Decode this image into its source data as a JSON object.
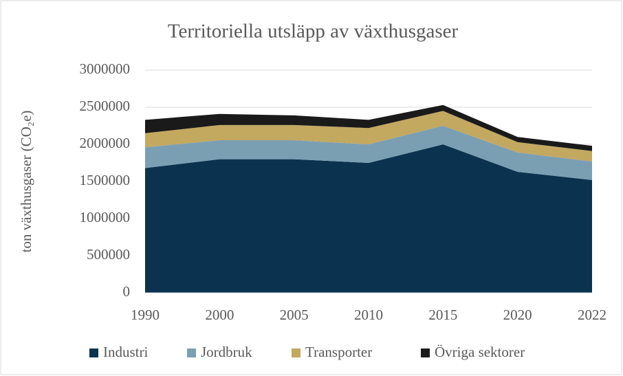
{
  "chart_data": {
    "type": "stacked_area",
    "title": "Territoriella utsläpp av växthusgaser",
    "y_label": "ton växthusgaser (CO₂e)",
    "categories": [
      "1990",
      "2000",
      "2005",
      "2010",
      "2015",
      "2020",
      "2022"
    ],
    "series": [
      {
        "name": "Industri",
        "color": "#0b3350",
        "values": [
          1680000,
          1800000,
          1800000,
          1750000,
          2000000,
          1630000,
          1520000
        ]
      },
      {
        "name": "Jordbruk",
        "color": "#7a9fb3",
        "values": [
          280000,
          255000,
          255000,
          250000,
          250000,
          260000,
          250000
        ]
      },
      {
        "name": "Transporter",
        "color": "#c3a860",
        "values": [
          190000,
          205000,
          205000,
          220000,
          200000,
          140000,
          140000
        ]
      },
      {
        "name": "Övriga sektorer",
        "color": "#1a1a1a",
        "values": [
          180000,
          150000,
          130000,
          110000,
          80000,
          70000,
          70000
        ]
      }
    ],
    "ylim": [
      0,
      3000000
    ],
    "yticks": [
      0,
      500000,
      1000000,
      1500000,
      2000000,
      2500000,
      3000000
    ],
    "grid": true,
    "legend": "bottom"
  }
}
